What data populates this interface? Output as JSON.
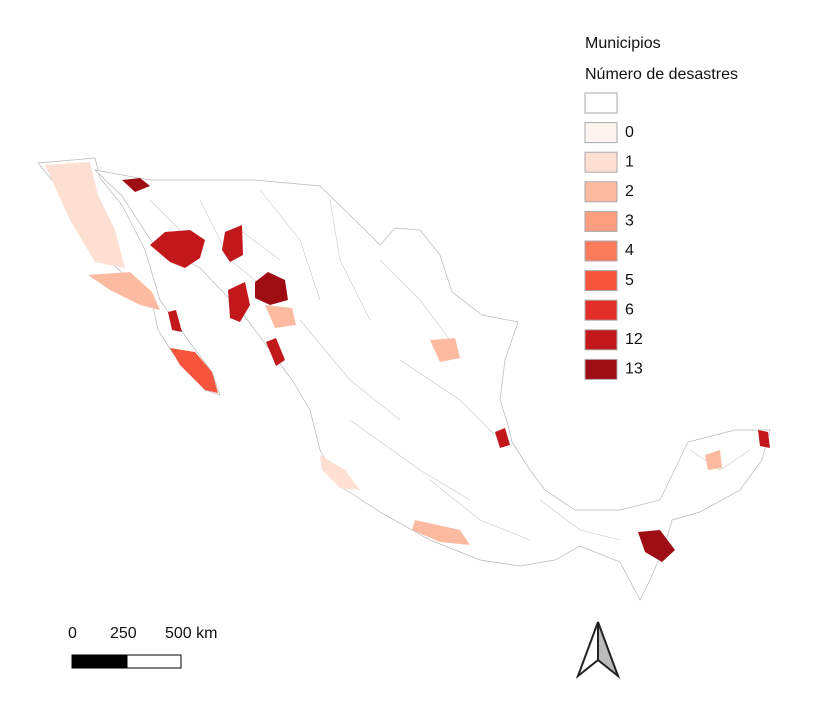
{
  "legend": {
    "title": "Municipios",
    "subtitle": "Número de desastres",
    "entries": [
      {
        "label": null,
        "color": "#ffffff"
      },
      {
        "label": "0",
        "color": "#fff5f0"
      },
      {
        "label": "1",
        "color": "#fde0d2"
      },
      {
        "label": "2",
        "color": "#fcbba1"
      },
      {
        "label": "3",
        "color": "#fc9f81"
      },
      {
        "label": "4",
        "color": "#fb7c5c"
      },
      {
        "label": "5",
        "color": "#f5553d"
      },
      {
        "label": "6",
        "color": "#e23028"
      },
      {
        "label": "12",
        "color": "#c2181c"
      },
      {
        "label": "13",
        "color": "#9e0d14"
      }
    ]
  },
  "scale_bar": {
    "labels": [
      "0",
      "250",
      "500 km"
    ]
  }
}
